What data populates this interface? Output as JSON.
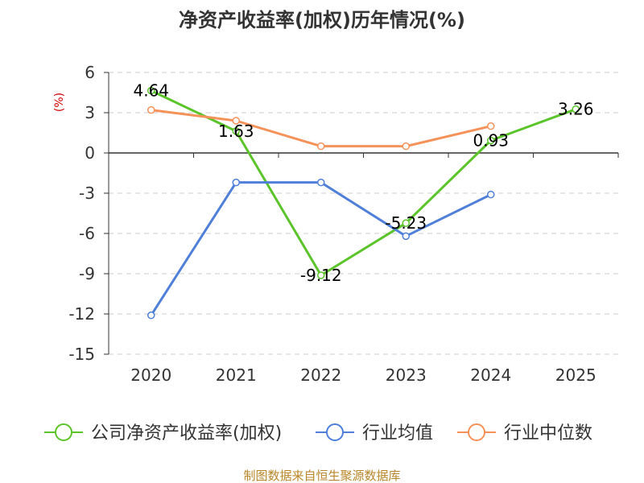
{
  "chart_data": {
    "type": "line",
    "title": "净资产收益率(加权)历年情况(%)",
    "ylabel": "(%)",
    "categories": [
      "2020",
      "2021",
      "2022",
      "2023",
      "2024",
      "2025"
    ],
    "ylim": [
      -15,
      6
    ],
    "yticks": [
      6,
      3,
      0,
      -3,
      -6,
      -9,
      -12,
      -15
    ],
    "grid": true,
    "legend_position": "bottom",
    "series": [
      {
        "name": "公司净资产收益率(加权)",
        "color": "#5cc42b",
        "values": [
          4.64,
          1.63,
          -9.12,
          -5.23,
          0.93,
          3.26
        ],
        "labels": [
          "4.64",
          "1.63",
          "-9.12",
          "-5.23",
          "0.93",
          "3.26"
        ]
      },
      {
        "name": "行业均值",
        "color": "#4f7fd9",
        "values": [
          -12.1,
          -2.2,
          -2.2,
          -6.2,
          -3.1,
          null
        ]
      },
      {
        "name": "行业中位数",
        "color": "#f5925a",
        "values": [
          3.2,
          2.4,
          0.5,
          0.5,
          2.0,
          null
        ]
      }
    ]
  },
  "source": "制图数据来自恒生聚源数据库"
}
